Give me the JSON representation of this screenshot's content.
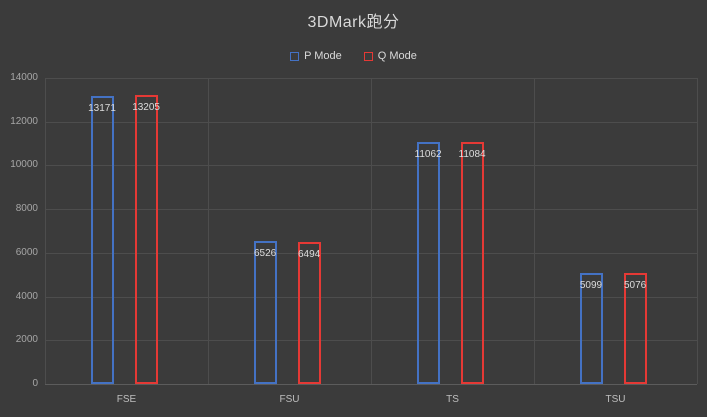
{
  "chart_data": {
    "type": "bar",
    "title": "3DMark跑分",
    "categories": [
      "FSE",
      "FSU",
      "TS",
      "TSU"
    ],
    "series": [
      {
        "name": "P Mode",
        "color": "#4472c4",
        "values": [
          13171,
          6526,
          11062,
          5099
        ]
      },
      {
        "name": "Q Mode",
        "color": "#e53935",
        "values": [
          13205,
          6494,
          11084,
          5076
        ]
      }
    ],
    "ylim": [
      0,
      14000
    ],
    "ytick_step": 2000,
    "yticks": [
      0,
      2000,
      4000,
      6000,
      8000,
      10000,
      12000,
      14000
    ],
    "grid": true,
    "legend_position": "top",
    "bar_style": "outline"
  },
  "colors": {
    "background": "#3b3b3b",
    "gridline": "#4d4d4d",
    "title_text": "#d9d9d9",
    "tick_text": "#a6a6a6",
    "data_label_text": "#dcdcdc"
  }
}
